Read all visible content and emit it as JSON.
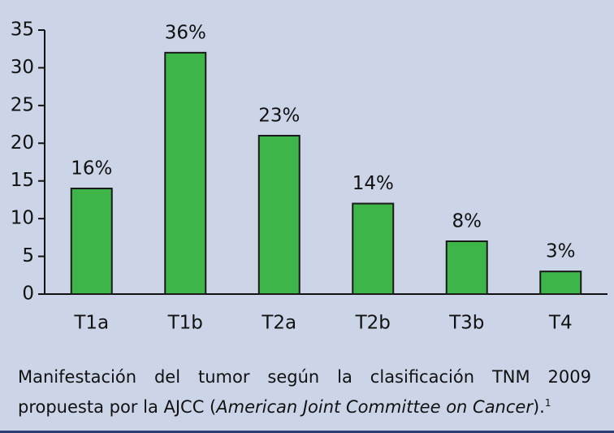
{
  "chart_data": {
    "type": "bar",
    "categories": [
      "T1a",
      "T1b",
      "T2a",
      "T2b",
      "T3b",
      "T4"
    ],
    "values": [
      14,
      32,
      21,
      12,
      7,
      3
    ],
    "annotations": [
      "16%",
      "36%",
      "23%",
      "14%",
      "8%",
      "3%"
    ],
    "color": "#3db549",
    "ylim": [
      0,
      35
    ],
    "yticks": [
      0,
      5,
      10,
      15,
      20,
      25,
      30,
      35
    ],
    "caption": {
      "text": "Manifestación del tumor según la clasificación TNM 2009 propuesta por la AJCC (",
      "italic": "American Joint Committee on Cancer",
      "end": ").",
      "sup": "1"
    }
  }
}
